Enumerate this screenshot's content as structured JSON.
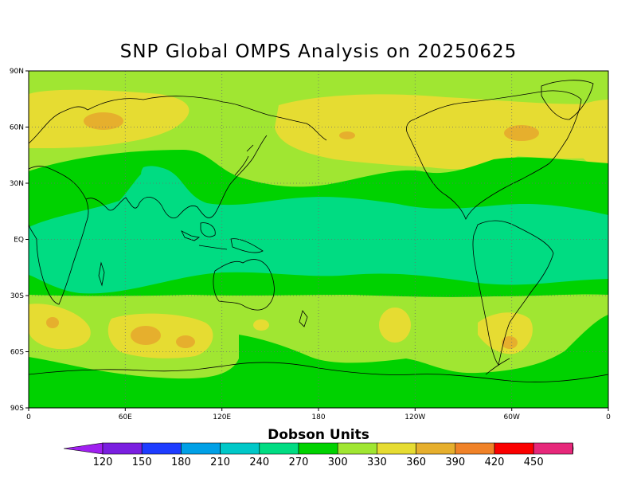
{
  "title": "SNP Global OMPS Analysis on 20250625",
  "colorbar": {
    "title": "Dobson Units",
    "labels": [
      "120",
      "150",
      "180",
      "210",
      "240",
      "270",
      "300",
      "330",
      "360",
      "390",
      "420",
      "450"
    ],
    "colors": [
      "#a020f0",
      "#7a1fe0",
      "#1e3cff",
      "#00a0e6",
      "#00c8c8",
      "#00dc82",
      "#00d200",
      "#a0e632",
      "#e6dc32",
      "#e6af2d",
      "#f08228",
      "#fa0000",
      "#e6287a",
      "#c81eaa"
    ]
  },
  "axes": {
    "lat_labels": [
      "90N",
      "60N",
      "30N",
      "EQ",
      "30S",
      "60S",
      "90S"
    ],
    "lon_labels": [
      "0",
      "60E",
      "120E",
      "180",
      "120W",
      "60W",
      "0"
    ]
  },
  "colors": {
    "band_300_330": "#00d200",
    "band_270_300": "#00dc82",
    "band_330_360": "#a0e632",
    "band_360_390": "#e6dc32",
    "band_390_420": "#e6af2d",
    "coastline": "#000000"
  }
}
